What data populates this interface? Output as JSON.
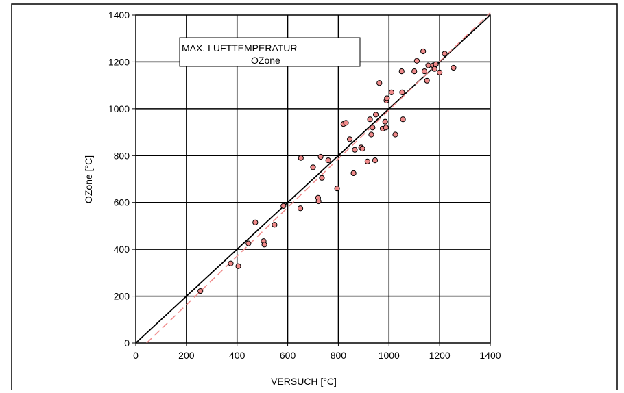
{
  "chart_data": {
    "type": "scatter",
    "title": "MAX. LUFTTEMPERATUR",
    "subtitle": "OZone",
    "xlabel": "VERSUCH [°C]",
    "ylabel": "OZone [°C]",
    "xlim": [
      0,
      1400
    ],
    "ylim": [
      0,
      1400
    ],
    "xticks": [
      "0",
      "200",
      "400",
      "600",
      "800",
      "1000",
      "1200",
      "1400"
    ],
    "yticks": [
      "0",
      "200",
      "400",
      "600",
      "800",
      "1000",
      "1200",
      "1400"
    ],
    "grid": true,
    "colors": {
      "marker_fill": "#f08a8a",
      "marker_stroke": "#000000",
      "fit_line": "#f08a8a",
      "identity_line": "#000000"
    },
    "lines": [
      {
        "name": "identity",
        "style": "solid",
        "x": [
          0,
          1400
        ],
        "y": [
          0,
          1400
        ]
      },
      {
        "name": "regression",
        "style": "dashed",
        "x": [
          0,
          1400
        ],
        "y": [
          -45,
          1420
        ]
      }
    ],
    "points": [
      [
        255,
        222
      ],
      [
        375,
        340
      ],
      [
        405,
        328
      ],
      [
        445,
        425
      ],
      [
        472,
        515
      ],
      [
        505,
        435
      ],
      [
        508,
        420
      ],
      [
        548,
        505
      ],
      [
        583,
        585
      ],
      [
        650,
        575
      ],
      [
        652,
        790
      ],
      [
        700,
        750
      ],
      [
        720,
        620
      ],
      [
        722,
        605
      ],
      [
        730,
        795
      ],
      [
        735,
        705
      ],
      [
        760,
        780
      ],
      [
        795,
        660
      ],
      [
        820,
        935
      ],
      [
        830,
        940
      ],
      [
        845,
        870
      ],
      [
        860,
        725
      ],
      [
        865,
        825
      ],
      [
        890,
        835
      ],
      [
        895,
        830
      ],
      [
        915,
        775
      ],
      [
        925,
        955
      ],
      [
        930,
        890
      ],
      [
        935,
        920
      ],
      [
        945,
        780
      ],
      [
        948,
        975
      ],
      [
        962,
        1110
      ],
      [
        975,
        915
      ],
      [
        985,
        945
      ],
      [
        988,
        920
      ],
      [
        990,
        1035
      ],
      [
        992,
        1045
      ],
      [
        1010,
        1070
      ],
      [
        1025,
        890
      ],
      [
        1050,
        1160
      ],
      [
        1052,
        1070
      ],
      [
        1055,
        955
      ],
      [
        1100,
        1160
      ],
      [
        1110,
        1205
      ],
      [
        1135,
        1245
      ],
      [
        1140,
        1160
      ],
      [
        1150,
        1120
      ],
      [
        1155,
        1185
      ],
      [
        1175,
        1185
      ],
      [
        1180,
        1170
      ],
      [
        1185,
        1190
      ],
      [
        1200,
        1155
      ],
      [
        1220,
        1235
      ],
      [
        1255,
        1175
      ]
    ]
  }
}
